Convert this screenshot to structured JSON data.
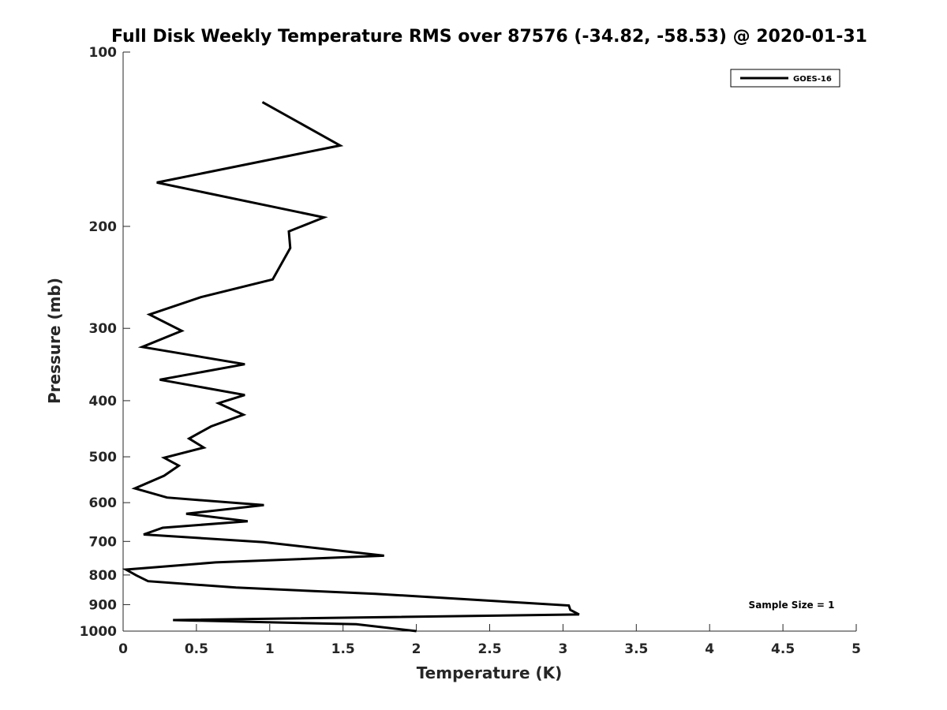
{
  "chart_data": {
    "type": "line",
    "title": "Full Disk Weekly Temperature RMS over 87576 (-34.82, -58.53) @ 2020-01-31",
    "xlabel": "Temperature (K)",
    "ylabel": "Pressure (mb)",
    "xlim": [
      0,
      5
    ],
    "ylim": [
      100,
      1000
    ],
    "yscale": "log",
    "y_reversed": true,
    "xticks": [
      0,
      0.5,
      1,
      1.5,
      2,
      2.5,
      3,
      3.5,
      4,
      4.5,
      5
    ],
    "xtick_labels": [
      "0",
      "0.5",
      "1",
      "1.5",
      "2",
      "2.5",
      "3",
      "3.5",
      "4",
      "4.5",
      "5"
    ],
    "yticks": [
      100,
      200,
      300,
      400,
      500,
      600,
      700,
      800,
      900,
      1000
    ],
    "ytick_labels": [
      "100",
      "200",
      "300",
      "400",
      "500",
      "600",
      "700",
      "800",
      "900",
      "1000"
    ],
    "grid": false,
    "legend_position": "top-right",
    "annotation": "Sample Size = 1",
    "series": [
      {
        "name": "GOES-16",
        "color": "#000000",
        "points": [
          [
            0.95,
            122
          ],
          [
            1.48,
            145
          ],
          [
            0.23,
            168
          ],
          [
            1.37,
            193
          ],
          [
            1.13,
            204
          ],
          [
            1.14,
            218
          ],
          [
            1.02,
            247
          ],
          [
            0.53,
            265
          ],
          [
            0.18,
            284
          ],
          [
            0.4,
            303
          ],
          [
            0.13,
            323
          ],
          [
            0.83,
            346
          ],
          [
            0.25,
            368
          ],
          [
            0.83,
            391
          ],
          [
            0.65,
            404
          ],
          [
            0.82,
            423
          ],
          [
            0.6,
            443
          ],
          [
            0.45,
            465
          ],
          [
            0.55,
            482
          ],
          [
            0.28,
            502
          ],
          [
            0.38,
            518
          ],
          [
            0.28,
            539
          ],
          [
            0.08,
            567
          ],
          [
            0.3,
            588
          ],
          [
            0.96,
            606
          ],
          [
            0.43,
            627
          ],
          [
            0.85,
            646
          ],
          [
            0.27,
            663
          ],
          [
            0.14,
            681
          ],
          [
            0.96,
            702
          ],
          [
            1.78,
            741
          ],
          [
            0.63,
            761
          ],
          [
            0.02,
            783
          ],
          [
            0.09,
            801
          ],
          [
            0.17,
            820
          ],
          [
            0.77,
            841
          ],
          [
            1.72,
            862
          ],
          [
            3.04,
            903
          ],
          [
            3.05,
            919
          ],
          [
            3.11,
            936
          ],
          [
            0.34,
            957
          ],
          [
            1.59,
            973
          ],
          [
            2.0,
            1000
          ]
        ]
      }
    ]
  }
}
